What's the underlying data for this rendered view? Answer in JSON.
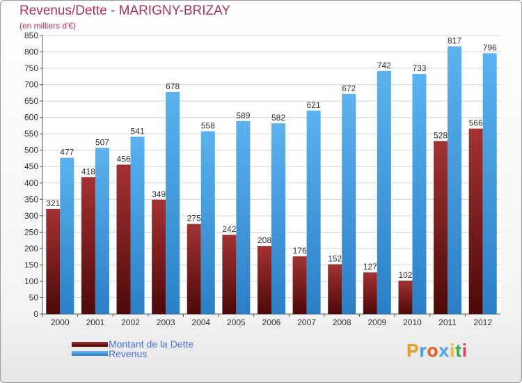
{
  "title": "Revenus/Dette - MARIGNY-BRIZAY",
  "subtitle": "(en milliers d'€)",
  "chart_data": {
    "type": "bar",
    "categories": [
      "2000",
      "2001",
      "2002",
      "2003",
      "2004",
      "2005",
      "2006",
      "2007",
      "2008",
      "2009",
      "2010",
      "2011",
      "2012"
    ],
    "series": [
      {
        "name": "Montant de la Dette",
        "color": "#7a1a1a",
        "values": [
          321,
          418,
          456,
          349,
          275,
          242,
          208,
          176,
          152,
          127,
          102,
          528,
          566
        ]
      },
      {
        "name": "Revenus",
        "color": "#4aa3e6",
        "values": [
          477,
          507,
          541,
          678,
          558,
          589,
          582,
          621,
          672,
          742,
          733,
          817,
          796
        ]
      }
    ],
    "ylim": [
      0,
      850
    ],
    "yticks": [
      0,
      50,
      100,
      150,
      200,
      250,
      300,
      350,
      400,
      450,
      500,
      550,
      600,
      650,
      700,
      750,
      800,
      850
    ],
    "grid": true,
    "legend_position": "bottom-left"
  },
  "legend": {
    "debt_label": "Montant de la Dette",
    "revenue_label": "Revenus"
  },
  "logo": {
    "letters": [
      "P",
      "r",
      "o",
      "x",
      "i",
      "t",
      "i"
    ],
    "colors": [
      "#e8a020",
      "#3aa3d8",
      "#e85a1a",
      "#4aa3e6",
      "#e8c020",
      "#3ab04a",
      "#e83a5a"
    ]
  }
}
